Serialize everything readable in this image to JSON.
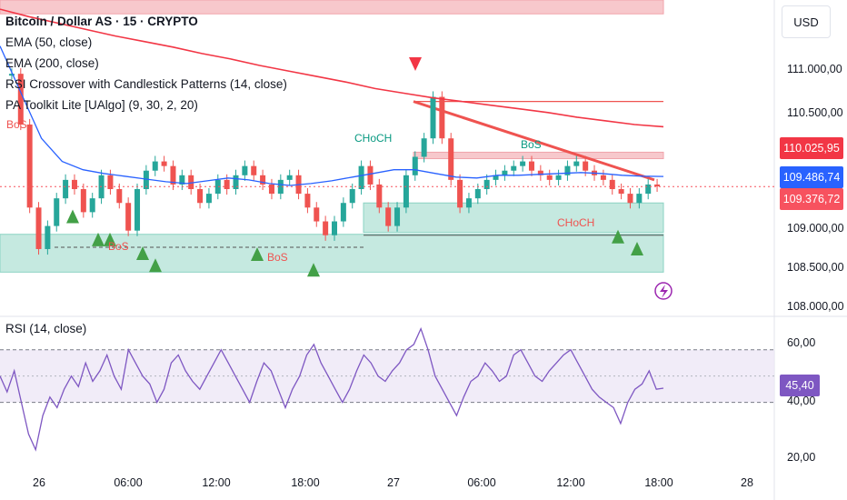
{
  "header": {
    "currency": "USD"
  },
  "legend": {
    "title": "Bitcoin / Dollar AS · 15 · CRYPTO",
    "items": [
      "EMA (50, close)",
      "EMA (200, close)",
      "RSI Crossover with Candlestick Patterns (14, close)",
      "PA Toolkit Lite [UAlgo] (9, 30, 2, 20)"
    ]
  },
  "annotations": {
    "bos_left": "BoS",
    "bos_1": "BoS",
    "bos_2": "BoS",
    "bos_top": "BoS",
    "choch_1": "CHoCH",
    "choch_2": "CHoCH"
  },
  "price_axis": {
    "labels": [
      "111.000,00",
      "110.500,00",
      "109.000,00",
      "108.500,00",
      "108.000,00"
    ],
    "tags": [
      {
        "text": "110.025,95",
        "color": "#f23645"
      },
      {
        "text": "109.486,74",
        "color": "#2962ff"
      },
      {
        "text": "109.376,72",
        "color": "#f7525f"
      }
    ]
  },
  "rsi": {
    "legend": "RSI (14, close)",
    "labels": [
      "60,00",
      "40,00",
      "20,00"
    ],
    "value_tag": "45,40",
    "tag_color": "#7e57c2"
  },
  "time_axis": {
    "labels": [
      "26",
      "06:00",
      "12:00",
      "18:00",
      "27",
      "06:00",
      "12:00",
      "18:00",
      "28"
    ]
  },
  "colors": {
    "up": "#26a69a",
    "down": "#ef5350",
    "ema50": "#2962ff",
    "ema200": "#f23645",
    "rsi_line": "#7e57c2",
    "zone_red": "#f7c3c7",
    "zone_green": "#bfe7dd"
  },
  "chart_data": {
    "type": "candlestick",
    "symbol": "Bitcoin / Dollar AS",
    "interval": "15",
    "ylim": [
      108000,
      111400
    ],
    "price_ticks": [
      111000,
      110500,
      109000,
      108500,
      108000
    ],
    "x": [
      "26 00:00",
      "26 06:00",
      "26 12:00",
      "26 18:00",
      "27 00:00",
      "27 06:00",
      "27 12:00",
      "27 18:00",
      "28 00:00"
    ],
    "close_path": [
      110600,
      110050,
      109150,
      108700,
      108950,
      109250,
      109450,
      109350,
      109100,
      109250,
      109500,
      109350,
      109200,
      108900,
      109350,
      109550,
      109650,
      109600,
      109400,
      109500,
      109350,
      109200,
      109300,
      109450,
      109350,
      109500,
      109600,
      109500,
      109400,
      109300,
      109450,
      109500,
      109300,
      109150,
      109000,
      108850,
      109000,
      109200,
      109350,
      109600,
      109400,
      109150,
      108950,
      109150,
      109500,
      109700,
      109900,
      110350,
      109900,
      109450,
      109150,
      109250,
      109350,
      109450,
      109500,
      109550,
      109600,
      109650,
      109550,
      109500,
      109450,
      109500,
      109600,
      109650,
      109550,
      109500,
      109450,
      109350,
      109300,
      109200,
      109300,
      109400,
      109380
    ],
    "ema50": {
      "name": "EMA (50, close)",
      "values": [
        110900,
        110400,
        109900,
        109650,
        109560,
        109520,
        109490,
        109460,
        109430,
        109410,
        109440,
        109470,
        109450,
        109410,
        109390,
        109410,
        109440,
        109480,
        109520,
        109560,
        109560,
        109520,
        109480,
        109470,
        109500,
        109500,
        109510,
        109520,
        109530,
        109520,
        109500,
        109490,
        109487
      ]
    },
    "ema200": {
      "name": "EMA (200, close)",
      "values": [
        111300,
        111220,
        111150,
        111080,
        111010,
        110950,
        110890,
        110820,
        110760,
        110690,
        110630,
        110570,
        110510,
        110440,
        110390,
        110340,
        110300,
        110260,
        110220,
        110180,
        110130,
        110090,
        110050,
        110026
      ]
    },
    "last_prices": {
      "ema200": 110025.95,
      "ema50": 109486.74,
      "close": 109376.72
    },
    "rsi": {
      "name": "RSI (14, close)",
      "ylim": [
        15,
        72
      ],
      "bands": [
        60,
        40
      ],
      "ticks": [
        60,
        40,
        20
      ],
      "last": 45.4,
      "values": [
        50,
        44,
        52,
        40,
        28,
        22,
        35,
        42,
        38,
        45,
        50,
        46,
        55,
        48,
        52,
        58,
        50,
        45,
        60,
        55,
        50,
        47,
        40,
        45,
        55,
        58,
        52,
        48,
        45,
        50,
        55,
        60,
        55,
        50,
        45,
        40,
        48,
        55,
        52,
        45,
        38,
        45,
        50,
        58,
        62,
        55,
        50,
        45,
        40,
        45,
        52,
        58,
        55,
        50,
        48,
        52,
        55,
        60,
        62,
        68,
        60,
        50,
        45,
        40,
        35,
        42,
        48,
        50,
        55,
        52,
        48,
        50,
        58,
        60,
        55,
        50,
        48,
        52,
        55,
        58,
        60,
        55,
        50,
        45,
        42,
        40,
        38,
        32,
        40,
        45,
        47,
        52,
        45,
        45.4
      ]
    }
  }
}
